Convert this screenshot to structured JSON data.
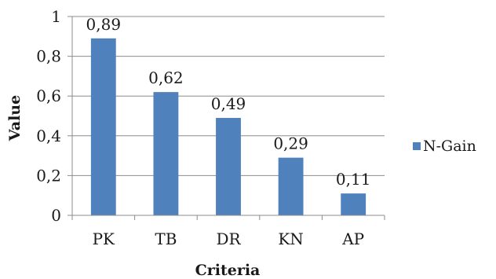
{
  "chart_data": {
    "type": "bar",
    "categories": [
      "PK",
      "TB",
      "DR",
      "KN",
      "AP"
    ],
    "series": [
      {
        "name": "N-Gain",
        "values": [
          0.89,
          0.62,
          0.49,
          0.29,
          0.11
        ],
        "value_labels": [
          "0,89",
          "0,62",
          "0,49",
          "0,29",
          "0,11"
        ],
        "color": "#4f81bd"
      }
    ],
    "xlabel": "Criteria",
    "ylabel": "Value",
    "ylim": [
      0,
      1
    ],
    "yticks": [
      0,
      0.2,
      0.4,
      0.6,
      0.8,
      1
    ],
    "ytick_labels": [
      "0",
      "0,2",
      "0,4",
      "0,6",
      "0,8",
      "1"
    ],
    "grid": true,
    "legend": "right",
    "colors": {
      "bar": "#4f81bd",
      "grid": "#8c8c8c",
      "axis": "#8c8c8c"
    }
  }
}
